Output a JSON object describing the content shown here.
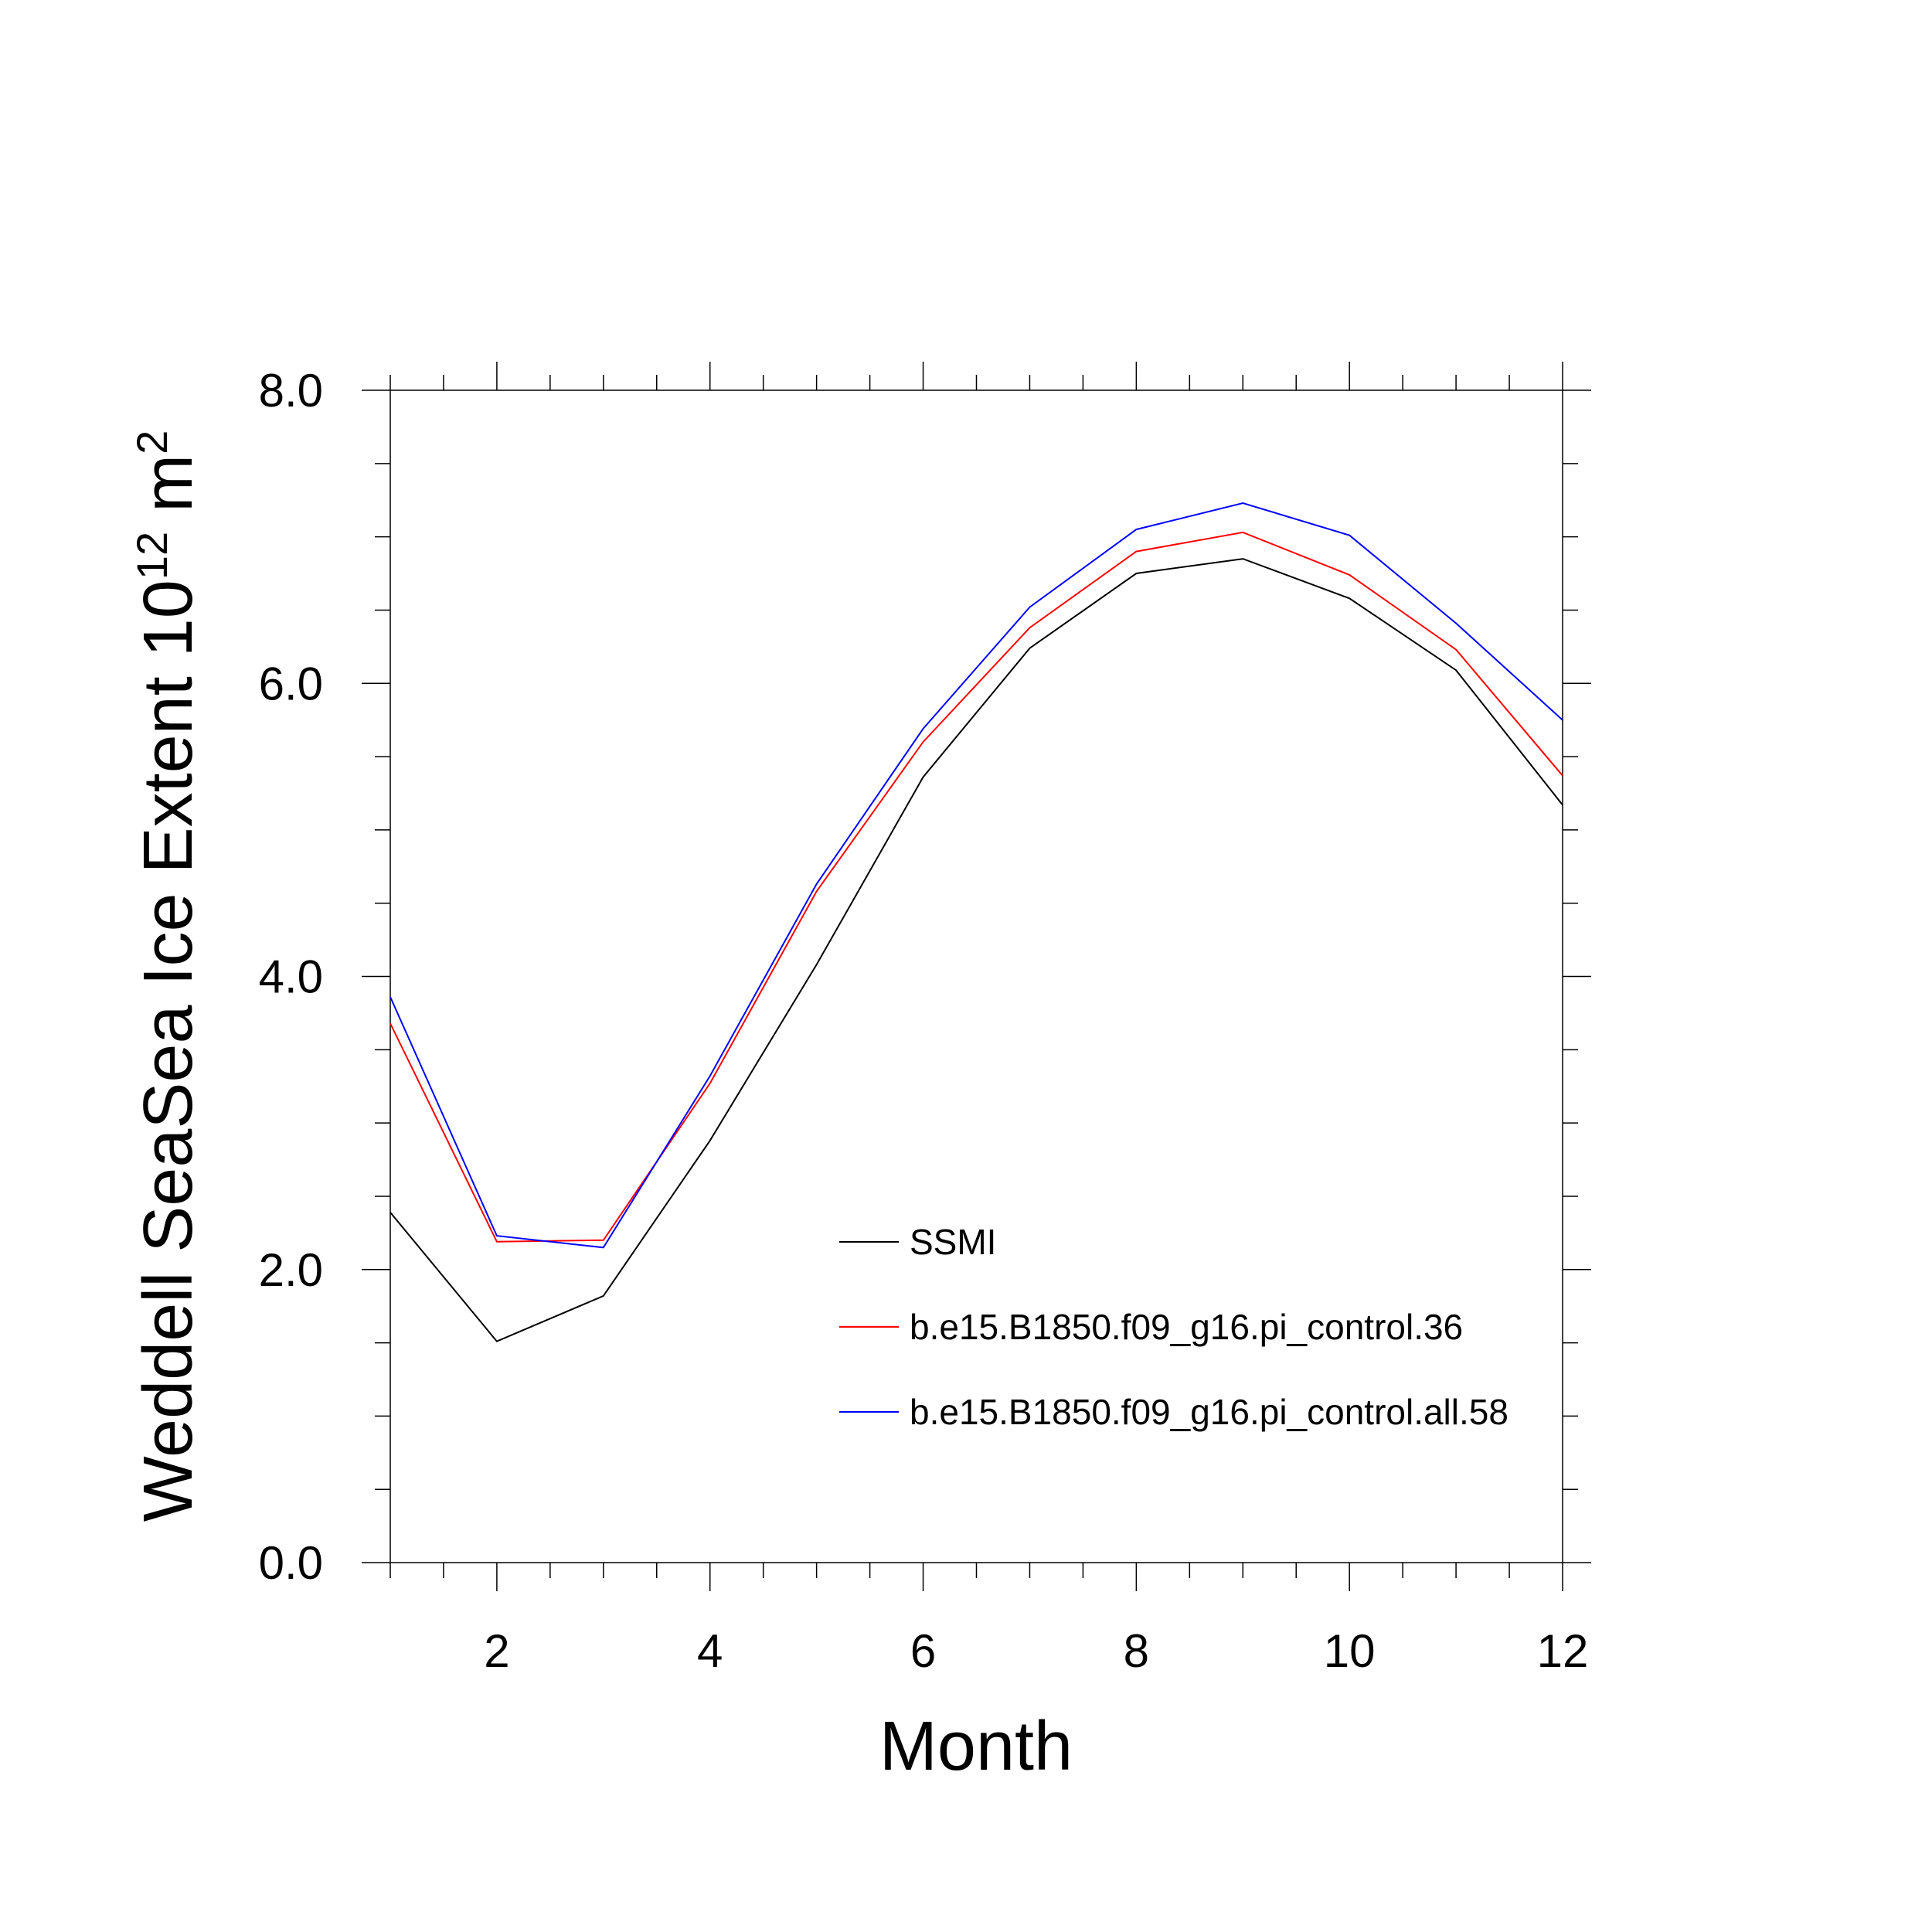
{
  "chart_data": {
    "type": "line",
    "xlabel": "Month",
    "ylabel": {
      "text": "Weddell SeaSea Ice Extent 10",
      "superscript_1": "12",
      "unit": " m",
      "superscript_2": "2"
    },
    "xlim": [
      1,
      12
    ],
    "ylim": [
      0,
      8
    ],
    "x_ticks": [
      2,
      4,
      6,
      8,
      10,
      12
    ],
    "x_tick_labels": [
      "2",
      "4",
      "6",
      "8",
      "10",
      "12"
    ],
    "y_ticks": [
      0,
      2,
      4,
      6,
      8
    ],
    "y_tick_labels": [
      "0.0",
      "2.0",
      "4.0",
      "6.0",
      "8.0"
    ],
    "x": [
      1,
      2,
      3,
      4,
      5,
      6,
      7,
      8,
      9,
      10,
      11,
      12
    ],
    "series": [
      {
        "name": "SSMI",
        "color": "#000000",
        "values": [
          2.39,
          1.51,
          1.82,
          2.88,
          4.08,
          5.36,
          6.24,
          6.75,
          6.85,
          6.58,
          6.09,
          5.17
        ]
      },
      {
        "name": "b.e15.B1850.f09_g16.pi_control.36",
        "color": "#ff0000",
        "values": [
          3.68,
          2.19,
          2.2,
          3.27,
          4.58,
          5.6,
          6.38,
          6.9,
          7.03,
          6.74,
          6.23,
          5.37
        ]
      },
      {
        "name": "b.e15.B1850.f09_g16.pi_control.all.58",
        "color": "#0000ff",
        "values": [
          3.86,
          2.23,
          2.15,
          3.32,
          4.63,
          5.69,
          6.52,
          7.05,
          7.23,
          7.01,
          6.41,
          5.75
        ]
      }
    ],
    "legend_position": "lower-right",
    "grid": false
  }
}
